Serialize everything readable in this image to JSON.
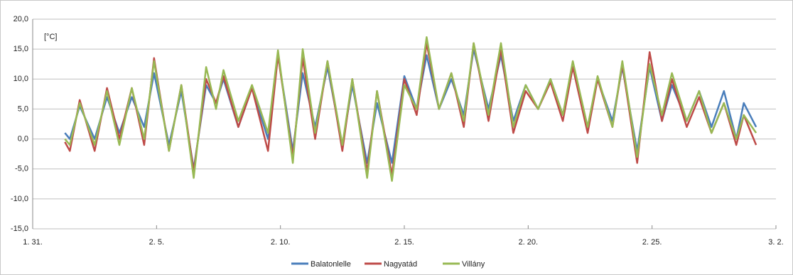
{
  "chart_data": {
    "type": "line",
    "annotation": "[°C]",
    "x": [
      1.3,
      1.5,
      1.9,
      2.5,
      3.0,
      3.5,
      4.0,
      4.5,
      4.9,
      5.5,
      6.0,
      6.5,
      7.0,
      7.4,
      7.7,
      8.3,
      8.85,
      9.5,
      9.9,
      10.5,
      10.9,
      11.4,
      11.9,
      12.5,
      12.9,
      13.5,
      13.9,
      14.5,
      15.0,
      15.5,
      15.9,
      16.4,
      16.9,
      17.4,
      17.8,
      18.4,
      18.9,
      19.4,
      19.9,
      20.4,
      20.9,
      21.4,
      21.8,
      22.4,
      22.8,
      23.4,
      23.8,
      24.4,
      24.9,
      25.4,
      25.8,
      26.4,
      26.9,
      27.4,
      27.9,
      28.4,
      28.7,
      29.2
    ],
    "series": [
      {
        "name": "Balatonlelle",
        "color": "#4a7ebb",
        "values": [
          1,
          0,
          5.5,
          0,
          7,
          1,
          7,
          2,
          11,
          -1,
          8,
          -5,
          9,
          6,
          10,
          2,
          8.5,
          0,
          14,
          -2,
          11,
          2,
          12,
          -1,
          9,
          -4,
          6,
          -4,
          10.5,
          5,
          14,
          5,
          10,
          4,
          15,
          5,
          14,
          3,
          9,
          5,
          10,
          4,
          12,
          2,
          10,
          3,
          12,
          -2,
          12,
          3,
          9,
          3,
          8,
          2,
          8,
          0,
          6,
          2
        ]
      },
      {
        "name": "Nagyatád",
        "color": "#be4b48",
        "values": [
          -0.5,
          -2,
          6.5,
          -2,
          8.5,
          0,
          8.5,
          -1,
          13.5,
          -2,
          9,
          -5.5,
          10,
          6,
          10.5,
          2,
          8.5,
          -2,
          14,
          -3,
          13.5,
          0,
          13,
          -2,
          10,
          -5.5,
          8,
          -6,
          10,
          4,
          16,
          5,
          11,
          2,
          16,
          3,
          15,
          1,
          8,
          5,
          9.5,
          3,
          12,
          1,
          10,
          2,
          12.5,
          -4,
          14.5,
          3,
          10,
          2,
          7,
          1,
          6,
          -1,
          4,
          -1
        ]
      },
      {
        "name": "Villány",
        "color": "#98b954",
        "values": [
          0,
          -1,
          6,
          -1,
          8,
          -1,
          8.5,
          0,
          13,
          -2,
          9,
          -6.5,
          12,
          5,
          11.5,
          3,
          9,
          1,
          14.8,
          -4,
          15,
          1,
          13,
          -1,
          10,
          -6.5,
          8,
          -7,
          9,
          5,
          17,
          5,
          11,
          3,
          16,
          4,
          16,
          2,
          9,
          5,
          10,
          4,
          13,
          2,
          10.5,
          2,
          13,
          -3,
          12.5,
          4,
          11,
          3,
          8,
          1,
          6,
          0,
          4,
          1
        ]
      }
    ],
    "xlim": [
      0,
      30
    ],
    "xticks": [
      {
        "value": 0,
        "label": "1. 31."
      },
      {
        "value": 5,
        "label": "2. 5."
      },
      {
        "value": 10,
        "label": "2. 10."
      },
      {
        "value": 15,
        "label": "2. 15."
      },
      {
        "value": 20,
        "label": "2. 20."
      },
      {
        "value": 25,
        "label": "2. 25."
      },
      {
        "value": 30,
        "label": "3. 2."
      }
    ],
    "ylim": [
      -15,
      20
    ],
    "yticks": [
      {
        "value": -15,
        "label": "-15,0"
      },
      {
        "value": -10,
        "label": "-10,0"
      },
      {
        "value": -5,
        "label": "-5,0"
      },
      {
        "value": 0,
        "label": "0,0"
      },
      {
        "value": 5,
        "label": "5,0"
      },
      {
        "value": 10,
        "label": "10,0"
      },
      {
        "value": 15,
        "label": "15,0"
      },
      {
        "value": 20,
        "label": "20,0"
      }
    ],
    "grid": true,
    "legend": "bottom"
  }
}
